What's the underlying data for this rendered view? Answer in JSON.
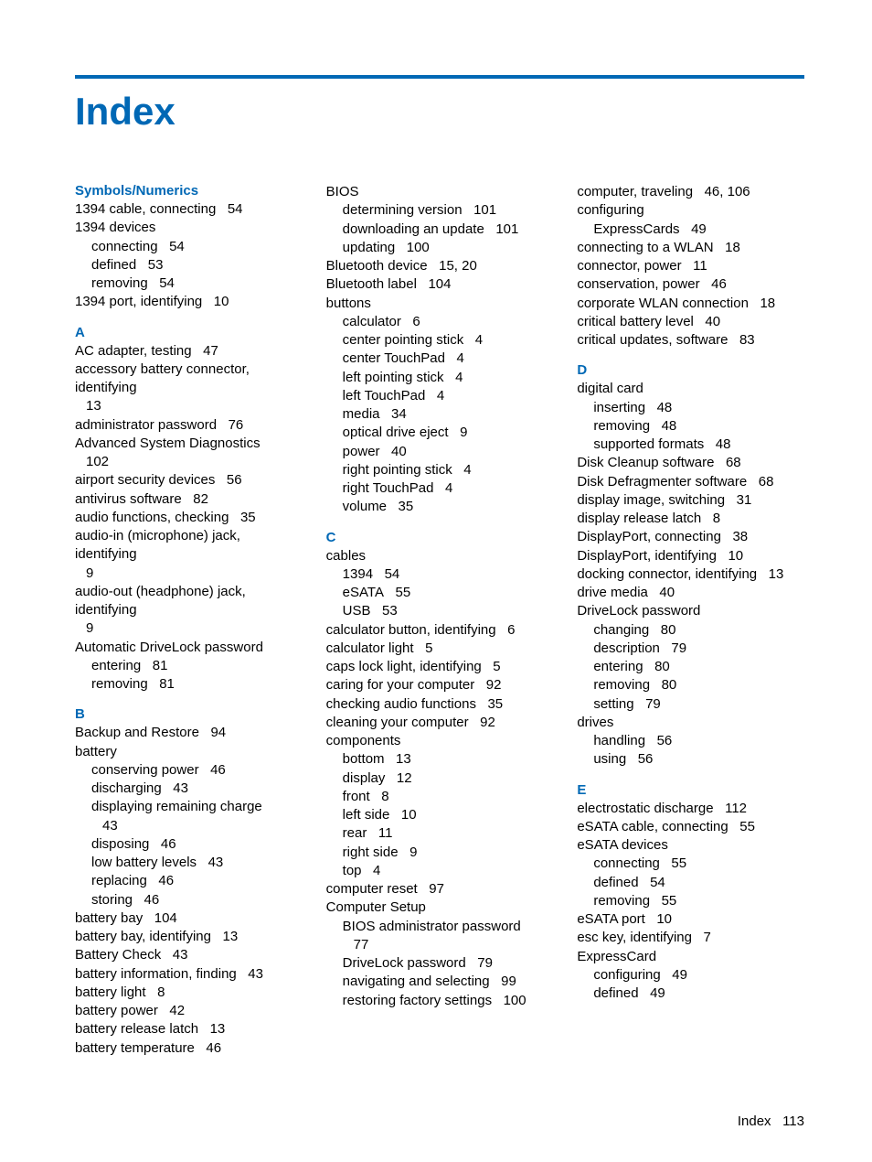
{
  "title": "Index",
  "footer_label": "Index",
  "footer_page": "113",
  "accent_color": "#0068b5",
  "columns": [
    {
      "sections": [
        {
          "heading": "Symbols/Numerics",
          "entries": [
            {
              "t": "1394 cable, connecting",
              "p": "54"
            },
            {
              "t": "1394 devices",
              "subs": [
                {
                  "t": "connecting",
                  "p": "54"
                },
                {
                  "t": "defined",
                  "p": "53"
                },
                {
                  "t": "removing",
                  "p": "54"
                }
              ]
            },
            {
              "t": "1394 port, identifying",
              "p": "10"
            }
          ]
        },
        {
          "heading": "A",
          "entries": [
            {
              "t": "AC adapter, testing",
              "p": "47"
            },
            {
              "t": "accessory battery connector, identifying",
              "p": "13",
              "wrap": true
            },
            {
              "t": "administrator password",
              "p": "76"
            },
            {
              "t": "Advanced System Diagnostics",
              "p": "102",
              "wrap": true
            },
            {
              "t": "airport security devices",
              "p": "56"
            },
            {
              "t": "antivirus software",
              "p": "82"
            },
            {
              "t": "audio functions, checking",
              "p": "35"
            },
            {
              "t": "audio-in (microphone) jack, identifying",
              "p": "9",
              "wrap": true
            },
            {
              "t": "audio-out (headphone) jack, identifying",
              "p": "9",
              "wrap": true
            },
            {
              "t": "Automatic DriveLock password",
              "subs": [
                {
                  "t": "entering",
                  "p": "81"
                },
                {
                  "t": "removing",
                  "p": "81"
                }
              ]
            }
          ]
        },
        {
          "heading": "B",
          "entries": [
            {
              "t": "Backup and Restore",
              "p": "94"
            },
            {
              "t": "battery",
              "subs": [
                {
                  "t": "conserving power",
                  "p": "46"
                },
                {
                  "t": "discharging",
                  "p": "43"
                },
                {
                  "t": "displaying remaining charge",
                  "p": "43",
                  "wrap": true
                },
                {
                  "t": "disposing",
                  "p": "46"
                },
                {
                  "t": "low battery levels",
                  "p": "43"
                },
                {
                  "t": "replacing",
                  "p": "46"
                },
                {
                  "t": "storing",
                  "p": "46"
                }
              ]
            },
            {
              "t": "battery bay",
              "p": "104"
            },
            {
              "t": "battery bay, identifying",
              "p": "13"
            },
            {
              "t": "Battery Check",
              "p": "43"
            },
            {
              "t": "battery information, finding",
              "p": "43"
            },
            {
              "t": "battery light",
              "p": "8"
            },
            {
              "t": "battery power",
              "p": "42"
            },
            {
              "t": "battery release latch",
              "p": "13"
            },
            {
              "t": "battery temperature",
              "p": "46"
            }
          ]
        }
      ]
    },
    {
      "sections": [
        {
          "heading": "",
          "entries": [
            {
              "t": "BIOS",
              "subs": [
                {
                  "t": "determining version",
                  "p": "101"
                },
                {
                  "t": "downloading an update",
                  "p": "101"
                },
                {
                  "t": "updating",
                  "p": "100"
                }
              ]
            },
            {
              "t": "Bluetooth device",
              "p": "15, 20"
            },
            {
              "t": "Bluetooth label",
              "p": "104"
            },
            {
              "t": "buttons",
              "subs": [
                {
                  "t": "calculator",
                  "p": "6"
                },
                {
                  "t": "center pointing stick",
                  "p": "4"
                },
                {
                  "t": "center TouchPad",
                  "p": "4"
                },
                {
                  "t": "left pointing stick",
                  "p": "4"
                },
                {
                  "t": "left TouchPad",
                  "p": "4"
                },
                {
                  "t": "media",
                  "p": "34"
                },
                {
                  "t": "optical drive eject",
                  "p": "9"
                },
                {
                  "t": "power",
                  "p": "40"
                },
                {
                  "t": "right pointing stick",
                  "p": "4"
                },
                {
                  "t": "right TouchPad",
                  "p": "4"
                },
                {
                  "t": "volume",
                  "p": "35"
                }
              ]
            }
          ]
        },
        {
          "heading": "C",
          "entries": [
            {
              "t": "cables",
              "subs": [
                {
                  "t": "1394",
                  "p": "54"
                },
                {
                  "t": "eSATA",
                  "p": "55"
                },
                {
                  "t": "USB",
                  "p": "53"
                }
              ]
            },
            {
              "t": "calculator button, identifying",
              "p": "6"
            },
            {
              "t": "calculator light",
              "p": "5"
            },
            {
              "t": "caps lock light, identifying",
              "p": "5"
            },
            {
              "t": "caring for your computer",
              "p": "92"
            },
            {
              "t": "checking audio functions",
              "p": "35"
            },
            {
              "t": "cleaning your computer",
              "p": "92"
            },
            {
              "t": "components",
              "subs": [
                {
                  "t": "bottom",
                  "p": "13"
                },
                {
                  "t": "display",
                  "p": "12"
                },
                {
                  "t": "front",
                  "p": "8"
                },
                {
                  "t": "left side",
                  "p": "10"
                },
                {
                  "t": "rear",
                  "p": "11"
                },
                {
                  "t": "right side",
                  "p": "9"
                },
                {
                  "t": "top",
                  "p": "4"
                }
              ]
            },
            {
              "t": "computer reset",
              "p": "97"
            },
            {
              "t": "Computer Setup",
              "subs": [
                {
                  "t": "BIOS administrator password",
                  "p": "77",
                  "wrap": true
                },
                {
                  "t": "DriveLock password",
                  "p": "79"
                },
                {
                  "t": "navigating and selecting",
                  "p": "99"
                },
                {
                  "t": "restoring factory settings",
                  "p": "100"
                }
              ]
            }
          ]
        }
      ]
    },
    {
      "sections": [
        {
          "heading": "",
          "entries": [
            {
              "t": "computer, traveling",
              "p": "46, 106"
            },
            {
              "t": "configuring",
              "subs": [
                {
                  "t": "ExpressCards",
                  "p": "49"
                }
              ]
            },
            {
              "t": "connecting to a WLAN",
              "p": "18"
            },
            {
              "t": "connector, power",
              "p": "11"
            },
            {
              "t": "conservation, power",
              "p": "46"
            },
            {
              "t": "corporate WLAN connection",
              "p": "18"
            },
            {
              "t": "critical battery level",
              "p": "40"
            },
            {
              "t": "critical updates, software",
              "p": "83"
            }
          ]
        },
        {
          "heading": "D",
          "entries": [
            {
              "t": "digital card",
              "subs": [
                {
                  "t": "inserting",
                  "p": "48"
                },
                {
                  "t": "removing",
                  "p": "48"
                },
                {
                  "t": "supported formats",
                  "p": "48"
                }
              ]
            },
            {
              "t": "Disk Cleanup software",
              "p": "68"
            },
            {
              "t": "Disk Defragmenter software",
              "p": "68"
            },
            {
              "t": "display image, switching",
              "p": "31"
            },
            {
              "t": "display release latch",
              "p": "8"
            },
            {
              "t": "DisplayPort, connecting",
              "p": "38"
            },
            {
              "t": "DisplayPort, identifying",
              "p": "10"
            },
            {
              "t": "docking connector, identifying",
              "p": "13"
            },
            {
              "t": "drive media",
              "p": "40"
            },
            {
              "t": "DriveLock password",
              "subs": [
                {
                  "t": "changing",
                  "p": "80"
                },
                {
                  "t": "description",
                  "p": "79"
                },
                {
                  "t": "entering",
                  "p": "80"
                },
                {
                  "t": "removing",
                  "p": "80"
                },
                {
                  "t": "setting",
                  "p": "79"
                }
              ]
            },
            {
              "t": "drives",
              "subs": [
                {
                  "t": "handling",
                  "p": "56"
                },
                {
                  "t": "using",
                  "p": "56"
                }
              ]
            }
          ]
        },
        {
          "heading": "E",
          "entries": [
            {
              "t": "electrostatic discharge",
              "p": "112"
            },
            {
              "t": "eSATA cable, connecting",
              "p": "55"
            },
            {
              "t": "eSATA devices",
              "subs": [
                {
                  "t": "connecting",
                  "p": "55"
                },
                {
                  "t": "defined",
                  "p": "54"
                },
                {
                  "t": "removing",
                  "p": "55"
                }
              ]
            },
            {
              "t": "eSATA port",
              "p": "10"
            },
            {
              "t": "esc key, identifying",
              "p": "7"
            },
            {
              "t": "ExpressCard",
              "subs": [
                {
                  "t": "configuring",
                  "p": "49"
                },
                {
                  "t": "defined",
                  "p": "49"
                }
              ]
            }
          ]
        }
      ]
    }
  ]
}
